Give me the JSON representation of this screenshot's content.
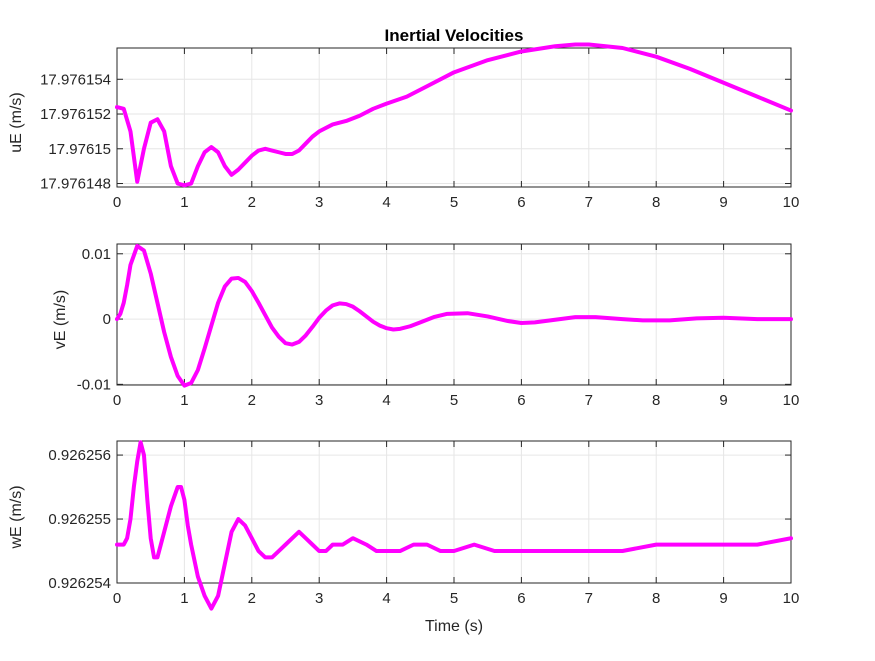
{
  "figure": {
    "title": "Inertial Velocities"
  },
  "colors": {
    "line": "#ff00ff",
    "axes": "#262626",
    "grid": "#e6e6e6",
    "background": "#ffffff"
  },
  "chart_data": [
    {
      "type": "line",
      "title": "Inertial Velocities",
      "xlabel": "",
      "ylabel": "uE (m/s)",
      "xlim": [
        0,
        10
      ],
      "ylim": [
        17.9761478,
        17.9761558
      ],
      "xticks": [
        0,
        1,
        2,
        3,
        4,
        5,
        6,
        7,
        8,
        9,
        10
      ],
      "xtick_labels": [
        "0",
        "1",
        "2",
        "3",
        "4",
        "5",
        "6",
        "7",
        "8",
        "9",
        "10"
      ],
      "yticks": [
        17.976148,
        17.97615,
        17.976152,
        17.976154
      ],
      "ytick_labels": [
        "17.976148",
        "17.97615",
        "17.976152",
        "17.976154"
      ],
      "grid": true,
      "series": [
        {
          "color": "#ff00ff",
          "x": [
            0,
            0.1,
            0.2,
            0.3,
            0.4,
            0.5,
            0.6,
            0.7,
            0.8,
            0.9,
            1.0,
            1.1,
            1.2,
            1.3,
            1.4,
            1.5,
            1.6,
            1.7,
            1.8,
            1.9,
            2.0,
            2.1,
            2.2,
            2.3,
            2.4,
            2.5,
            2.6,
            2.7,
            2.8,
            2.9,
            3.0,
            3.2,
            3.4,
            3.6,
            3.8,
            4.0,
            4.3,
            4.6,
            5.0,
            5.5,
            6.0,
            6.5,
            6.8,
            7.0,
            7.5,
            8.0,
            8.5,
            9.0,
            9.5,
            10.0
          ],
          "y": [
            17.9761524,
            17.9761523,
            17.976151,
            17.9761481,
            17.97615,
            17.9761515,
            17.9761517,
            17.976151,
            17.976149,
            17.976148,
            17.9761479,
            17.976148,
            17.976149,
            17.9761498,
            17.9761501,
            17.9761498,
            17.976149,
            17.9761485,
            17.9761488,
            17.9761492,
            17.9761496,
            17.9761499,
            17.97615,
            17.9761499,
            17.9761498,
            17.9761497,
            17.9761497,
            17.9761499,
            17.9761503,
            17.9761507,
            17.976151,
            17.9761514,
            17.9761516,
            17.9761519,
            17.9761523,
            17.9761526,
            17.976153,
            17.9761536,
            17.9761544,
            17.9761551,
            17.9761556,
            17.9761559,
            17.976156,
            17.976156,
            17.9761558,
            17.9761553,
            17.9761546,
            17.9761538,
            17.976153,
            17.9761522
          ]
        }
      ]
    },
    {
      "type": "line",
      "title": "",
      "xlabel": "",
      "ylabel": "vE (m/s)",
      "xlim": [
        0,
        10
      ],
      "ylim": [
        -0.0101,
        0.0115
      ],
      "xticks": [
        0,
        1,
        2,
        3,
        4,
        5,
        6,
        7,
        8,
        9,
        10
      ],
      "xtick_labels": [
        "0",
        "1",
        "2",
        "3",
        "4",
        "5",
        "6",
        "7",
        "8",
        "9",
        "10"
      ],
      "yticks": [
        -0.01,
        0,
        0.01
      ],
      "ytick_labels": [
        "-0.01",
        "0",
        "0.01"
      ],
      "grid": true,
      "series": [
        {
          "color": "#ff00ff",
          "x": [
            0,
            0.05,
            0.1,
            0.15,
            0.2,
            0.3,
            0.4,
            0.5,
            0.6,
            0.7,
            0.8,
            0.9,
            1.0,
            1.1,
            1.2,
            1.3,
            1.4,
            1.5,
            1.6,
            1.7,
            1.8,
            1.9,
            2.0,
            2.1,
            2.2,
            2.3,
            2.4,
            2.5,
            2.6,
            2.7,
            2.8,
            2.9,
            3.0,
            3.1,
            3.2,
            3.3,
            3.4,
            3.5,
            3.6,
            3.7,
            3.8,
            3.9,
            4.0,
            4.1,
            4.2,
            4.35,
            4.5,
            4.7,
            4.9,
            5.2,
            5.5,
            5.8,
            6.0,
            6.2,
            6.5,
            6.8,
            7.1,
            7.5,
            7.8,
            8.2,
            8.6,
            9.0,
            9.5,
            10.0
          ],
          "y": [
            0,
            0.0008,
            0.0025,
            0.0052,
            0.0083,
            0.0112,
            0.0105,
            0.007,
            0.0025,
            -0.002,
            -0.0058,
            -0.0087,
            -0.0102,
            -0.0098,
            -0.0078,
            -0.0045,
            -0.001,
            0.0025,
            0.005,
            0.0062,
            0.0063,
            0.0057,
            0.0043,
            0.0025,
            0.0006,
            -0.0013,
            -0.0027,
            -0.0037,
            -0.0039,
            -0.0035,
            -0.0025,
            -0.0012,
            0.0002,
            0.0013,
            0.0021,
            0.0024,
            0.0023,
            0.0019,
            0.0012,
            0.0004,
            -0.0004,
            -0.001,
            -0.0014,
            -0.0016,
            -0.0015,
            -0.0011,
            -0.0005,
            0.0003,
            0.0008,
            0.0009,
            0.0004,
            -0.0003,
            -0.0006,
            -0.0005,
            -0.0001,
            0.0003,
            0.0003,
            0.0,
            -0.0002,
            -0.0002,
            0.0001,
            0.0002,
            0.0,
            0.0
          ]
        }
      ]
    },
    {
      "type": "line",
      "title": "",
      "xlabel": "Time (s)",
      "ylabel": "wE (m/s)",
      "xlim": [
        0,
        10
      ],
      "ylim": [
        0.926254,
        0.92625622
      ],
      "xticks": [
        0,
        1,
        2,
        3,
        4,
        5,
        6,
        7,
        8,
        9,
        10
      ],
      "xtick_labels": [
        "0",
        "1",
        "2",
        "3",
        "4",
        "5",
        "6",
        "7",
        "8",
        "9",
        "10"
      ],
      "yticks": [
        0.926254,
        0.926255,
        0.926256
      ],
      "ytick_labels": [
        "0.926254",
        "0.926255",
        "0.926256"
      ],
      "grid": true,
      "series": [
        {
          "color": "#ff00ff",
          "x": [
            0,
            0.1,
            0.15,
            0.2,
            0.25,
            0.3,
            0.35,
            0.4,
            0.45,
            0.5,
            0.55,
            0.6,
            0.65,
            0.7,
            0.8,
            0.9,
            0.95,
            1.0,
            1.05,
            1.1,
            1.2,
            1.3,
            1.4,
            1.5,
            1.6,
            1.7,
            1.8,
            1.9,
            2.0,
            2.1,
            2.2,
            2.3,
            2.4,
            2.5,
            2.6,
            2.7,
            2.8,
            2.9,
            3.0,
            3.1,
            3.2,
            3.35,
            3.5,
            3.7,
            3.85,
            4.0,
            4.2,
            4.4,
            4.6,
            4.8,
            5.0,
            5.3,
            5.6,
            6.0,
            6.5,
            7.0,
            7.5,
            8.0,
            8.5,
            9.0,
            9.5,
            10.0
          ],
          "y": [
            0.9262546,
            0.9262546,
            0.9262547,
            0.926255,
            0.9262555,
            0.9262559,
            0.9262562,
            0.926256,
            0.9262553,
            0.9262547,
            0.9262544,
            0.9262544,
            0.9262546,
            0.9262548,
            0.9262552,
            0.9262555,
            0.9262555,
            0.9262553,
            0.9262549,
            0.9262546,
            0.9262541,
            0.9262538,
            0.9262536,
            0.9262538,
            0.9262543,
            0.9262548,
            0.926255,
            0.9262549,
            0.9262547,
            0.9262545,
            0.9262544,
            0.9262544,
            0.9262545,
            0.9262546,
            0.9262547,
            0.9262548,
            0.9262547,
            0.9262546,
            0.9262545,
            0.9262545,
            0.9262546,
            0.9262546,
            0.9262547,
            0.9262546,
            0.9262545,
            0.9262545,
            0.9262545,
            0.9262546,
            0.9262546,
            0.9262545,
            0.9262545,
            0.9262546,
            0.9262545,
            0.9262545,
            0.9262545,
            0.9262545,
            0.9262545,
            0.9262546,
            0.9262546,
            0.9262546,
            0.9262546,
            0.9262547
          ]
        }
      ]
    }
  ]
}
